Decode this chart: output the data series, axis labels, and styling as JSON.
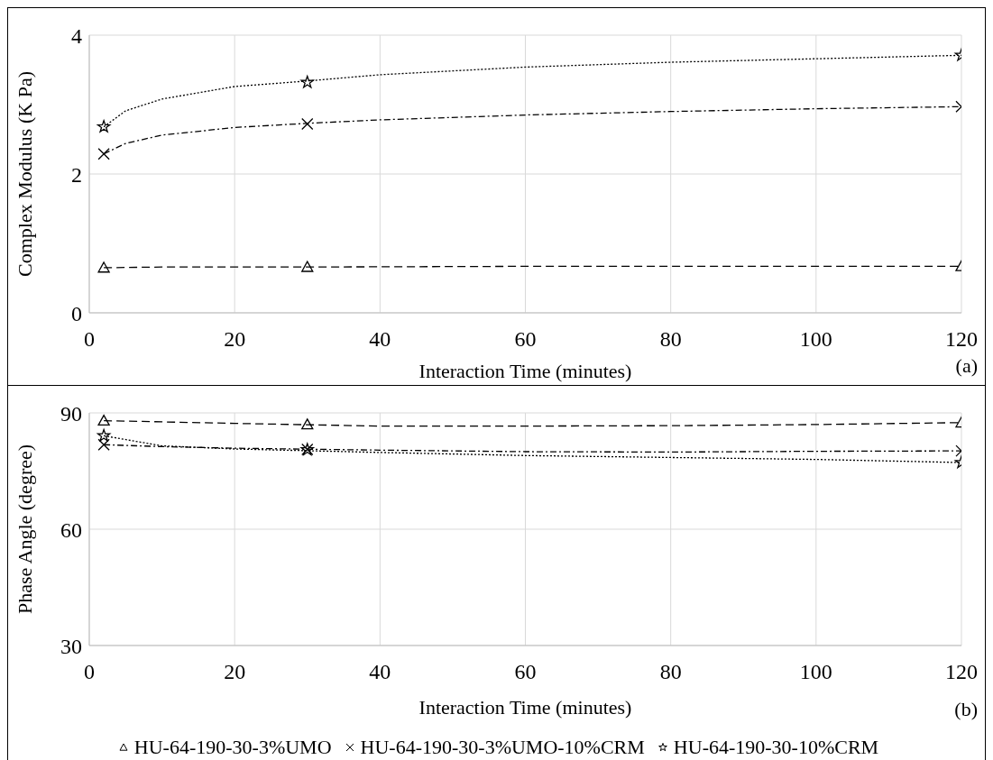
{
  "chart_data": [
    {
      "type": "scatter",
      "xlabel": "Interaction Time (minutes)",
      "ylabel": "Complex Modulus (K Pa)",
      "annotations": [
        "(a)"
      ],
      "xlim": [
        0,
        120
      ],
      "xticks": [
        0,
        20,
        40,
        60,
        80,
        100,
        120
      ],
      "ylim": [
        0,
        4
      ],
      "yticks": [
        0,
        2,
        4
      ],
      "grid": true,
      "legend": false,
      "series": [
        {
          "marker": "triangle",
          "color": "#000000",
          "x": [
            2,
            30,
            120
          ],
          "values": [
            0.65,
            0.66,
            0.67
          ]
        },
        {
          "marker": "cross",
          "color": "#000000",
          "x": [
            2,
            30,
            120
          ],
          "values": [
            2.29,
            2.72,
            2.97
          ]
        },
        {
          "marker": "star",
          "color": "#000000",
          "x": [
            2,
            30,
            120
          ],
          "values": [
            2.68,
            3.32,
            3.71
          ]
        },
        {
          "type": "line",
          "marker": "none",
          "line_style": "dashed",
          "color": "#000000",
          "x": [
            2,
            10,
            30,
            60,
            120
          ],
          "values": [
            0.65,
            0.66,
            0.66,
            0.67,
            0.67
          ]
        },
        {
          "type": "line",
          "marker": "none",
          "line_style": "dashdot",
          "color": "#000000",
          "x": [
            2,
            5,
            10,
            20,
            30,
            40,
            60,
            80,
            100,
            120
          ],
          "values": [
            2.29,
            2.44,
            2.56,
            2.67,
            2.73,
            2.78,
            2.85,
            2.9,
            2.94,
            2.97
          ]
        },
        {
          "type": "line",
          "marker": "none",
          "line_style": "dotted",
          "color": "#000000",
          "x": [
            2,
            5,
            10,
            20,
            30,
            40,
            60,
            80,
            100,
            120
          ],
          "values": [
            2.68,
            2.91,
            3.08,
            3.26,
            3.34,
            3.43,
            3.54,
            3.61,
            3.66,
            3.71
          ]
        }
      ]
    },
    {
      "type": "scatter",
      "xlabel": "Interaction Time (minutes)",
      "ylabel": "Phase Angle (degree)",
      "annotations": [
        "(b)"
      ],
      "xlim": [
        0,
        120
      ],
      "xticks": [
        0,
        20,
        40,
        60,
        80,
        100,
        120
      ],
      "ylim": [
        30,
        90
      ],
      "yticks": [
        30,
        60,
        90
      ],
      "grid": true,
      "legend": "bottom",
      "series": [
        {
          "name": "HU-64-190-30-3%UMO",
          "marker": "triangle",
          "color": "#000000",
          "x": [
            2,
            30,
            120
          ],
          "values": [
            88.0,
            87.0,
            87.5
          ]
        },
        {
          "name": "HU-64-190-30-3%UMO-10%CRM",
          "marker": "cross",
          "color": "#000000",
          "x": [
            2,
            30,
            120
          ],
          "values": [
            81.8,
            80.6,
            80.2
          ]
        },
        {
          "name": "HU-64-190-30-10%CRM",
          "marker": "star",
          "color": "#000000",
          "x": [
            2,
            30,
            120
          ],
          "values": [
            84.1,
            80.5,
            77.2
          ]
        },
        {
          "type": "line",
          "marker": "none",
          "line_style": "dashed",
          "color": "#000000",
          "x": [
            2,
            20,
            40,
            60,
            80,
            100,
            120
          ],
          "values": [
            88.0,
            87.3,
            86.6,
            86.6,
            86.7,
            87.0,
            87.5
          ]
        },
        {
          "type": "line",
          "marker": "none",
          "line_style": "dashdot",
          "color": "#000000",
          "x": [
            2,
            10,
            20,
            40,
            60,
            80,
            100,
            120
          ],
          "values": [
            81.8,
            81.3,
            80.9,
            80.4,
            80.0,
            79.9,
            80.1,
            80.2
          ]
        },
        {
          "type": "line",
          "marker": "none",
          "line_style": "dotted",
          "color": "#000000",
          "x": [
            2,
            10,
            20,
            40,
            60,
            80,
            100,
            120
          ],
          "values": [
            84.1,
            81.5,
            80.7,
            79.8,
            79.0,
            78.5,
            78.0,
            77.2
          ]
        }
      ]
    }
  ]
}
